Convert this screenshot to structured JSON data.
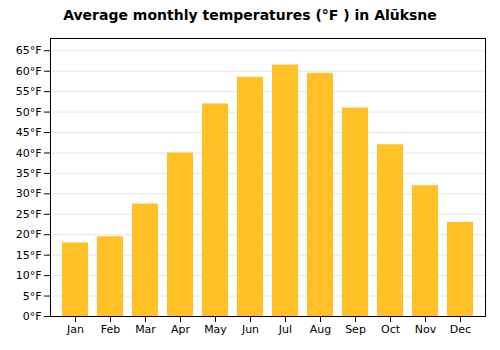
{
  "chart_data": {
    "type": "bar",
    "title": "Average monthly temperatures (°F ) in Alūksne",
    "categories": [
      "Jan",
      "Feb",
      "Mar",
      "Apr",
      "May",
      "Jun",
      "Jul",
      "Aug",
      "Sep",
      "Oct",
      "Nov",
      "Dec"
    ],
    "values": [
      18,
      19.5,
      27.5,
      40,
      52,
      58.5,
      61.5,
      59.5,
      51,
      42,
      32,
      23
    ],
    "color": "#FFC125",
    "ylim": [
      0,
      68
    ],
    "yticks": [
      {
        "value": 0,
        "label": "0°F"
      },
      {
        "value": 5,
        "label": "5°F"
      },
      {
        "value": 10,
        "label": "10°F"
      },
      {
        "value": 15,
        "label": "15°F"
      },
      {
        "value": 20,
        "label": "20°F"
      },
      {
        "value": 25,
        "label": "25°F"
      },
      {
        "value": 30,
        "label": "30°F"
      },
      {
        "value": 35,
        "label": "35°F"
      },
      {
        "value": 40,
        "label": "40°F"
      },
      {
        "value": 45,
        "label": "45°F"
      },
      {
        "value": 50,
        "label": "50°F"
      },
      {
        "value": 55,
        "label": "55°F"
      },
      {
        "value": 60,
        "label": "60°F"
      },
      {
        "value": 65,
        "label": "65°F"
      }
    ],
    "grid": true
  }
}
